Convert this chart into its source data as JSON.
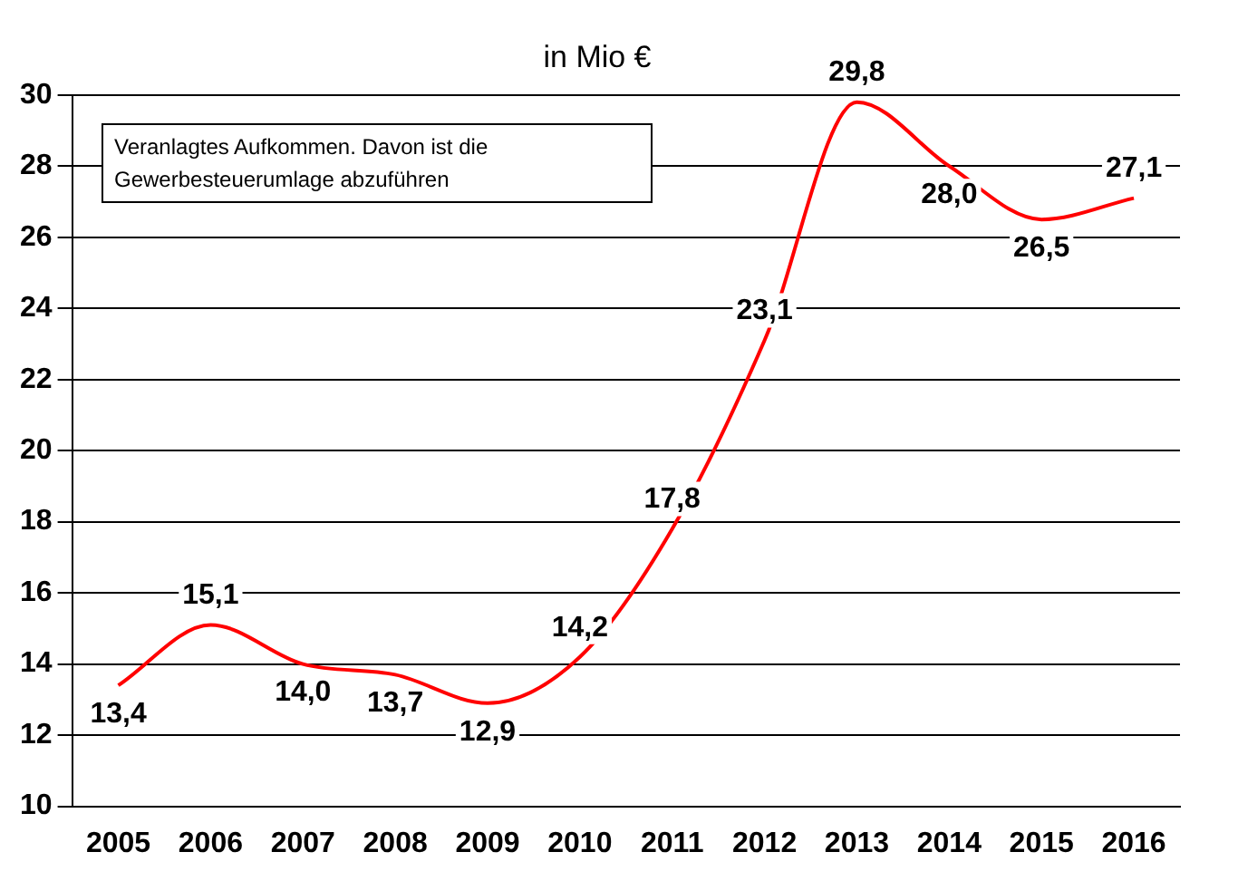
{
  "chart_data": {
    "type": "line",
    "title": "in Mio €",
    "categories": [
      "2005",
      "2006",
      "2007",
      "2008",
      "2009",
      "2010",
      "2011",
      "2012",
      "2013",
      "2014",
      "2015",
      "2016"
    ],
    "series": [
      {
        "color": "#ff0000",
        "values": [
          13.4,
          15.1,
          14.0,
          13.7,
          12.9,
          14.2,
          17.8,
          23.1,
          29.8,
          28.0,
          26.5,
          27.1
        ],
        "value_labels": [
          "13,4",
          "15,1",
          "14,0",
          "13,7",
          "12,9",
          "14,2",
          "17,8",
          "23,1",
          "29,8",
          "28,0",
          "26,5",
          "27,1"
        ]
      }
    ],
    "ylim": [
      10,
      30
    ],
    "yticks": [
      10,
      12,
      14,
      16,
      18,
      20,
      22,
      24,
      26,
      28,
      30
    ],
    "grid": "y",
    "marker": "none",
    "annotations": [
      "Veranlagtes Aufkommen. Davon ist die Gewerbesteuerumlage abzuführen"
    ]
  }
}
